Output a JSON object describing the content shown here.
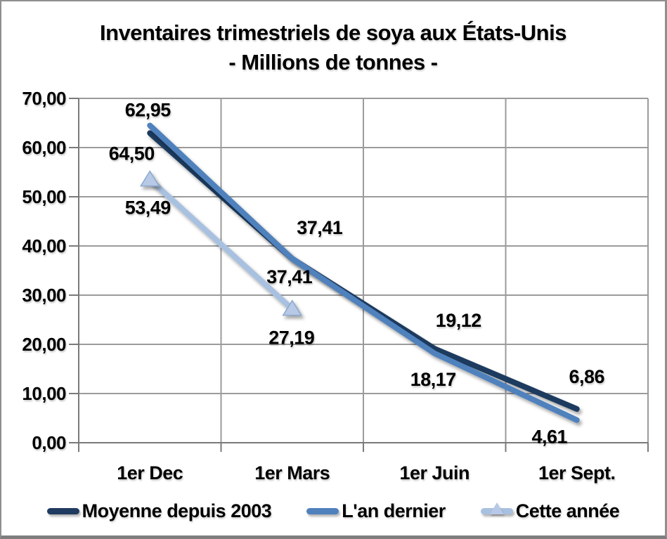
{
  "title": {
    "line1": "Inventaires trimestriels de soya aux États-Unis",
    "line2": "- Millions de tonnes -"
  },
  "chart_data": {
    "type": "line",
    "title": "Inventaires trimestriels de soya aux États-Unis - Millions de tonnes -",
    "categories": [
      "1er Dec",
      "1er Mars",
      "1er Juin",
      "1er Sept."
    ],
    "xlabel": "",
    "ylabel": "",
    "ylim": [
      0,
      70
    ],
    "grid": true,
    "legend_position": "bottom",
    "y_axis": {
      "min": 0,
      "max": 70,
      "step": 10,
      "tick_labels": [
        "70,00",
        "60,00",
        "50,00",
        "40,00",
        "30,00",
        "20,00",
        "10,00",
        "0,00"
      ]
    },
    "series": [
      {
        "name": "Moyenne depuis 2003",
        "color": "#1f3b5f",
        "marker": "none",
        "values": [
          62.95,
          37.41,
          19.12,
          6.86
        ],
        "labels": [
          "62,95",
          "37,41",
          "19,12",
          "6,86"
        ],
        "label_offsets": [
          [
            -3,
            -33
          ],
          [
            39,
            -44
          ],
          [
            34,
            -40
          ],
          [
            14,
            -46
          ]
        ]
      },
      {
        "name": "L'an dernier",
        "color": "#4f81bd",
        "marker": "none",
        "values": [
          64.5,
          37.41,
          18.17,
          4.61
        ],
        "labels": [
          "64,50",
          "37,41",
          "18,17",
          "4,61"
        ],
        "label_offsets": [
          [
            -26,
            40
          ],
          [
            -4,
            26
          ],
          [
            -2,
            37
          ],
          [
            -39,
            24
          ]
        ]
      },
      {
        "name": "Cette année",
        "color": "#a9c1e0",
        "marker": "triangle",
        "marker_fill": "#b7c9e6",
        "marker_stroke": "#8da9cd",
        "values": [
          53.49,
          27.19
        ],
        "labels": [
          "53,49",
          "27,19"
        ],
        "label_offsets": [
          [
            -3,
            40
          ],
          [
            -1,
            41
          ]
        ]
      }
    ],
    "colors": {
      "gridline": "#9b9b9b",
      "axis": "#7a7a7a",
      "label_text": "#000000",
      "background": "#ffffff",
      "frame_border": "#8f8f8f"
    }
  }
}
